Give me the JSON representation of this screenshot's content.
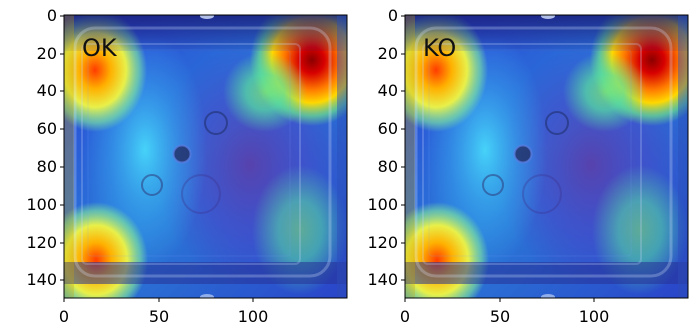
{
  "figure": {
    "panels": [
      {
        "label": "OK",
        "x_ticks": [
          "0",
          "50",
          "100"
        ],
        "y_ticks": [
          "0",
          "20",
          "40",
          "60",
          "80",
          "100",
          "120",
          "140"
        ]
      },
      {
        "label": "KO",
        "x_ticks": [
          "0",
          "50",
          "100"
        ],
        "y_ticks": [
          "0",
          "20",
          "40",
          "60",
          "80",
          "100",
          "120",
          "140"
        ]
      }
    ]
  }
}
